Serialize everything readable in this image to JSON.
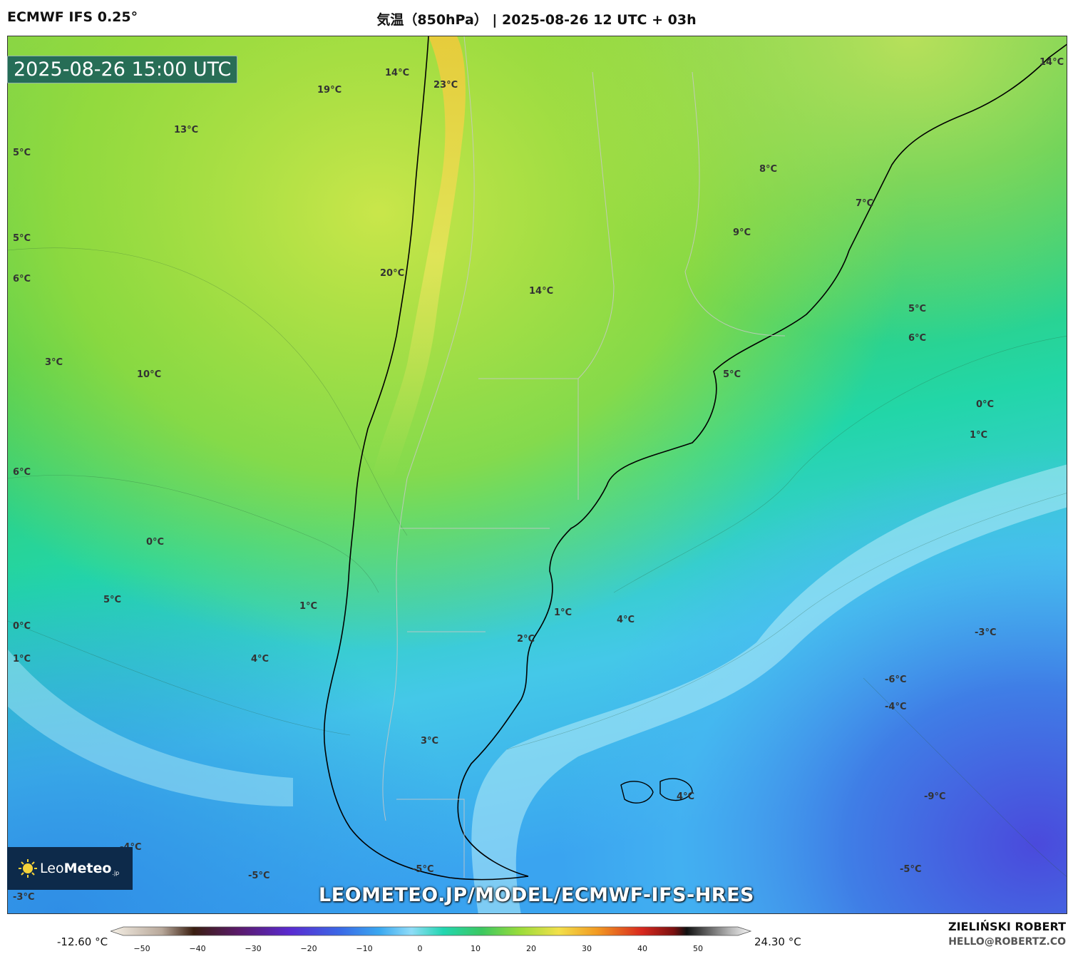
{
  "header": {
    "model": "ECMWF IFS 0.25°",
    "title": "気温（850hPa） | 2025-08-26 12 UTC + 03h"
  },
  "valid_time": "2025-08-26 15:00 UTC",
  "watermark": "LEOMETEO.JP/MODEL/ECMWF-IFS-HRES",
  "logo": {
    "text_light": "Leo",
    "text_bold": "Meteo",
    "suffix": ".jp",
    "icon": "sun-icon"
  },
  "credits": {
    "name": "ZIELIŃSKI ROBERT",
    "email": "HELLO@ROBERTZ.CO"
  },
  "colorbar": {
    "min_label": "-12.60 °C",
    "max_label": "24.30 °C",
    "ticks": [
      "−50",
      "−40",
      "−30",
      "−20",
      "−10",
      "0",
      "10",
      "20",
      "30",
      "40",
      "50"
    ]
  },
  "temperature_labels": [
    "14°C",
    "23°C",
    "19°C",
    "13°C",
    "5°C",
    "5°C",
    "6°C",
    "20°C",
    "14°C",
    "3°C",
    "10°C",
    "6°C",
    "0°C",
    "5°C",
    "1°C",
    "0°C",
    "1°C",
    "4°C",
    "8°C",
    "7°C",
    "9°C",
    "5°C",
    "6°C",
    "5°C",
    "0°C",
    "1°C",
    "14°C",
    "1°C",
    "4°C",
    "2°C",
    "3°C",
    "-3°C",
    "-6°C",
    "-4°C",
    "4°C",
    "-9°C",
    "-4°C",
    "-5°C",
    "-5°C",
    "-5°C",
    "-3°C"
  ]
}
